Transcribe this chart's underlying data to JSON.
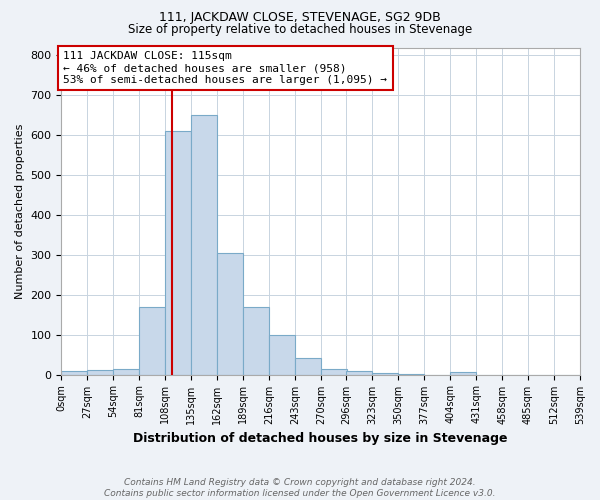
{
  "title": "111, JACKDAW CLOSE, STEVENAGE, SG2 9DB",
  "subtitle": "Size of property relative to detached houses in Stevenage",
  "xlabel": "Distribution of detached houses by size in Stevenage",
  "ylabel": "Number of detached properties",
  "bin_edges": [
    0,
    27,
    54,
    81,
    108,
    135,
    162,
    189,
    216,
    243,
    270,
    296,
    323,
    350,
    377,
    404,
    431,
    458,
    485,
    512,
    539
  ],
  "counts": [
    8,
    12,
    15,
    170,
    610,
    650,
    305,
    170,
    98,
    42,
    15,
    8,
    5,
    2,
    0,
    6,
    0,
    0,
    0,
    0
  ],
  "bar_color": "#c8d8ea",
  "bar_edge_color": "#7aaac8",
  "property_size": 115,
  "vline_color": "#cc0000",
  "annotation_line1": "111 JACKDAW CLOSE: 115sqm",
  "annotation_line2": "← 46% of detached houses are smaller (958)",
  "annotation_line3": "53% of semi-detached houses are larger (1,095) →",
  "annotation_box_color": "white",
  "annotation_box_edge_color": "#cc0000",
  "ylim": [
    0,
    820
  ],
  "yticks": [
    0,
    100,
    200,
    300,
    400,
    500,
    600,
    700,
    800
  ],
  "tick_labels": [
    "0sqm",
    "27sqm",
    "54sqm",
    "81sqm",
    "108sqm",
    "135sqm",
    "162sqm",
    "189sqm",
    "216sqm",
    "243sqm",
    "270sqm",
    "296sqm",
    "323sqm",
    "350sqm",
    "377sqm",
    "404sqm",
    "431sqm",
    "458sqm",
    "485sqm",
    "512sqm",
    "539sqm"
  ],
  "footer_line1": "Contains HM Land Registry data © Crown copyright and database right 2024.",
  "footer_line2": "Contains public sector information licensed under the Open Government Licence v3.0.",
  "bg_color": "#eef2f7",
  "plot_bg_color": "#ffffff",
  "grid_color": "#c8d4e0",
  "title_fontsize": 9,
  "subtitle_fontsize": 8.5,
  "xlabel_fontsize": 9,
  "ylabel_fontsize": 8,
  "tick_fontsize": 7,
  "ytick_fontsize": 8,
  "annotation_fontsize": 8
}
